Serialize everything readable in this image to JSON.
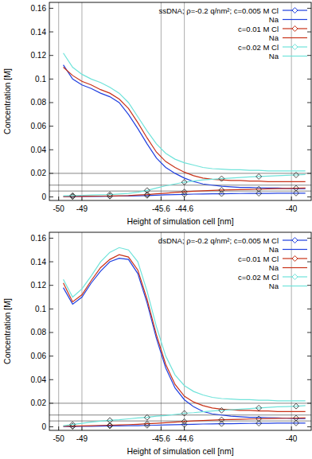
{
  "chart_data": [
    {
      "type": "line",
      "x_label": "Height of simulation cell  [nm]",
      "y_label": "Concentration  [M]",
      "xlim": [
        -50.4,
        -39.15
      ],
      "ylim": [
        -0.003,
        0.165
      ],
      "xticks": [
        -50,
        -49,
        -45.6,
        -44.6,
        -40
      ],
      "yticks": [
        0,
        0.02,
        0.04,
        0.06,
        0.08,
        0.1,
        0.12,
        0.14,
        0.16
      ],
      "grid": true,
      "legend": "top-right",
      "reference_lines": [
        0.005,
        0.01,
        0.02
      ],
      "x": [
        -49.8,
        -49.4,
        -49,
        -48.6,
        -48.2,
        -47.8,
        -47.4,
        -47,
        -46.6,
        -46.2,
        -45.8,
        -45.4,
        -45,
        -44.6,
        -44.2,
        -43.8,
        -43.4,
        -43,
        -42.6,
        -42.2,
        -41.8,
        -41.4,
        -41,
        -40.6,
        -40.2,
        -39.8,
        -39.4
      ],
      "series": [
        {
          "name": "ssDNA;  ρ=-0.2 q/nm²;  c=0.005 M  Cl",
          "color": "#2040e0",
          "marker": "diamond",
          "line_style": "solid",
          "values": [
            0.0002,
            0.0003,
            0.0004,
            0.0005,
            0.0005,
            0.0006,
            0.0007,
            0.0008,
            0.001,
            0.0012,
            0.0015,
            0.0018,
            0.002,
            0.0022,
            0.0024,
            0.0025,
            0.0026,
            0.0027,
            0.0028,
            0.0029,
            0.003,
            0.003,
            0.003,
            0.0031,
            0.0031,
            0.0032,
            0.0032
          ]
        },
        {
          "name": "Na",
          "color": "#2040e0",
          "marker": "none",
          "line_style": "solid",
          "values": [
            0.112,
            0.1,
            0.095,
            0.092,
            0.088,
            0.085,
            0.08,
            0.07,
            0.058,
            0.045,
            0.033,
            0.025,
            0.02,
            0.016,
            0.013,
            0.011,
            0.01,
            0.009,
            0.0085,
            0.008,
            0.008,
            0.0078,
            0.0075,
            0.0075,
            0.0072,
            0.007,
            0.007
          ]
        },
        {
          "name": "c=0.01  M  Cl",
          "color": "#c83218",
          "marker": "diamond",
          "line_style": "solid",
          "values": [
            0.0003,
            0.0004,
            0.0005,
            0.0006,
            0.0007,
            0.0008,
            0.001,
            0.0012,
            0.0016,
            0.002,
            0.0026,
            0.0032,
            0.0038,
            0.0043,
            0.0048,
            0.0052,
            0.0055,
            0.0058,
            0.006,
            0.0062,
            0.0064,
            0.0066,
            0.0068,
            0.007,
            0.0072,
            0.0074,
            0.0075
          ]
        },
        {
          "name": "Na",
          "color": "#c83218",
          "marker": "none",
          "line_style": "solid",
          "values": [
            0.11,
            0.103,
            0.098,
            0.095,
            0.091,
            0.088,
            0.083,
            0.075,
            0.063,
            0.05,
            0.038,
            0.03,
            0.025,
            0.021,
            0.018,
            0.016,
            0.015,
            0.0145,
            0.014,
            0.014,
            0.0135,
            0.0135,
            0.013,
            0.013,
            0.013,
            0.013,
            0.013
          ]
        },
        {
          "name": "c=0.02  M  Cl",
          "color": "#6fe3da",
          "marker": "diamond",
          "line_style": "solid",
          "values": [
            0.001,
            0.0012,
            0.0014,
            0.0016,
            0.0018,
            0.002,
            0.0025,
            0.003,
            0.004,
            0.0055,
            0.0075,
            0.0095,
            0.011,
            0.0125,
            0.0135,
            0.0145,
            0.015,
            0.0155,
            0.016,
            0.0165,
            0.017,
            0.0173,
            0.0176,
            0.018,
            0.0183,
            0.0186,
            0.019
          ]
        },
        {
          "name": "Na",
          "color": "#6fe3da",
          "marker": "none",
          "line_style": "solid",
          "values": [
            0.122,
            0.11,
            0.104,
            0.1,
            0.097,
            0.093,
            0.088,
            0.08,
            0.068,
            0.056,
            0.045,
            0.037,
            0.032,
            0.029,
            0.027,
            0.025,
            0.024,
            0.0235,
            0.023,
            0.023,
            0.0225,
            0.0225,
            0.022,
            0.022,
            0.022,
            0.022,
            0.022
          ]
        }
      ]
    },
    {
      "type": "line",
      "x_label": "Height of simulation cell  [nm]",
      "y_label": "Concentration  [M]",
      "xlim": [
        -50.4,
        -39.15
      ],
      "ylim": [
        -0.003,
        0.165
      ],
      "xticks": [
        -50,
        -49,
        -45.6,
        -44.6,
        -40
      ],
      "yticks": [
        0,
        0.02,
        0.04,
        0.06,
        0.08,
        0.1,
        0.12,
        0.14,
        0.16
      ],
      "grid": true,
      "legend": "top-right",
      "reference_lines": [
        0.005,
        0.01,
        0.02
      ],
      "x": [
        -49.8,
        -49.4,
        -49,
        -48.6,
        -48.2,
        -47.8,
        -47.4,
        -47,
        -46.6,
        -46.2,
        -45.8,
        -45.4,
        -45,
        -44.6,
        -44.2,
        -43.8,
        -43.4,
        -43,
        -42.6,
        -42.2,
        -41.8,
        -41.4,
        -41,
        -40.6,
        -40.2,
        -39.8,
        -39.4
      ],
      "series": [
        {
          "name": "dsDNA;  ρ=-0.2 q/nm²;  c=0.005 M  Cl",
          "color": "#2040e0",
          "marker": "diamond",
          "line_style": "solid",
          "values": [
            0.0002,
            0.0003,
            0.0004,
            0.0005,
            0.0006,
            0.0007,
            0.0008,
            0.0009,
            0.001,
            0.0012,
            0.0014,
            0.0016,
            0.0018,
            0.002,
            0.0022,
            0.0024,
            0.0025,
            0.0026,
            0.0027,
            0.0028,
            0.0029,
            0.003,
            0.003,
            0.0031,
            0.0031,
            0.0032,
            0.0032
          ]
        },
        {
          "name": "Na",
          "color": "#2040e0",
          "marker": "none",
          "line_style": "solid",
          "values": [
            0.118,
            0.104,
            0.11,
            0.122,
            0.132,
            0.14,
            0.143,
            0.142,
            0.13,
            0.105,
            0.075,
            0.05,
            0.033,
            0.023,
            0.017,
            0.013,
            0.011,
            0.01,
            0.009,
            0.0085,
            0.008,
            0.008,
            0.0078,
            0.0075,
            0.0073,
            0.007,
            0.007
          ]
        },
        {
          "name": "c=0.01  M  Cl",
          "color": "#c83218",
          "marker": "diamond",
          "line_style": "solid",
          "values": [
            0.0004,
            0.0006,
            0.0008,
            0.001,
            0.0012,
            0.0014,
            0.0016,
            0.0019,
            0.0022,
            0.0026,
            0.003,
            0.0035,
            0.004,
            0.0045,
            0.005,
            0.0054,
            0.0057,
            0.006,
            0.0062,
            0.0064,
            0.0066,
            0.0068,
            0.007,
            0.0072,
            0.0073,
            0.0074,
            0.0075
          ]
        },
        {
          "name": "Na",
          "color": "#c83218",
          "marker": "none",
          "line_style": "solid",
          "values": [
            0.122,
            0.106,
            0.112,
            0.124,
            0.135,
            0.142,
            0.146,
            0.144,
            0.133,
            0.108,
            0.078,
            0.053,
            0.036,
            0.026,
            0.021,
            0.018,
            0.016,
            0.015,
            0.0145,
            0.014,
            0.014,
            0.0135,
            0.0135,
            0.013,
            0.013,
            0.013,
            0.013
          ]
        },
        {
          "name": "c=0.02  M  Cl",
          "color": "#6fe3da",
          "marker": "diamond",
          "line_style": "solid",
          "values": [
            0.001,
            0.002,
            0.003,
            0.004,
            0.0048,
            0.0055,
            0.006,
            0.0068,
            0.0075,
            0.008,
            0.009,
            0.0095,
            0.0105,
            0.0115,
            0.012,
            0.0128,
            0.0135,
            0.014,
            0.0145,
            0.015,
            0.0155,
            0.016,
            0.0165,
            0.017,
            0.0172,
            0.0175,
            0.018
          ]
        },
        {
          "name": "Na",
          "color": "#6fe3da",
          "marker": "none",
          "line_style": "solid",
          "values": [
            0.125,
            0.11,
            0.117,
            0.128,
            0.14,
            0.148,
            0.152,
            0.15,
            0.14,
            0.115,
            0.085,
            0.06,
            0.044,
            0.035,
            0.03,
            0.027,
            0.025,
            0.024,
            0.0235,
            0.023,
            0.023,
            0.0225,
            0.0225,
            0.022,
            0.022,
            0.022,
            0.022
          ]
        }
      ]
    }
  ]
}
